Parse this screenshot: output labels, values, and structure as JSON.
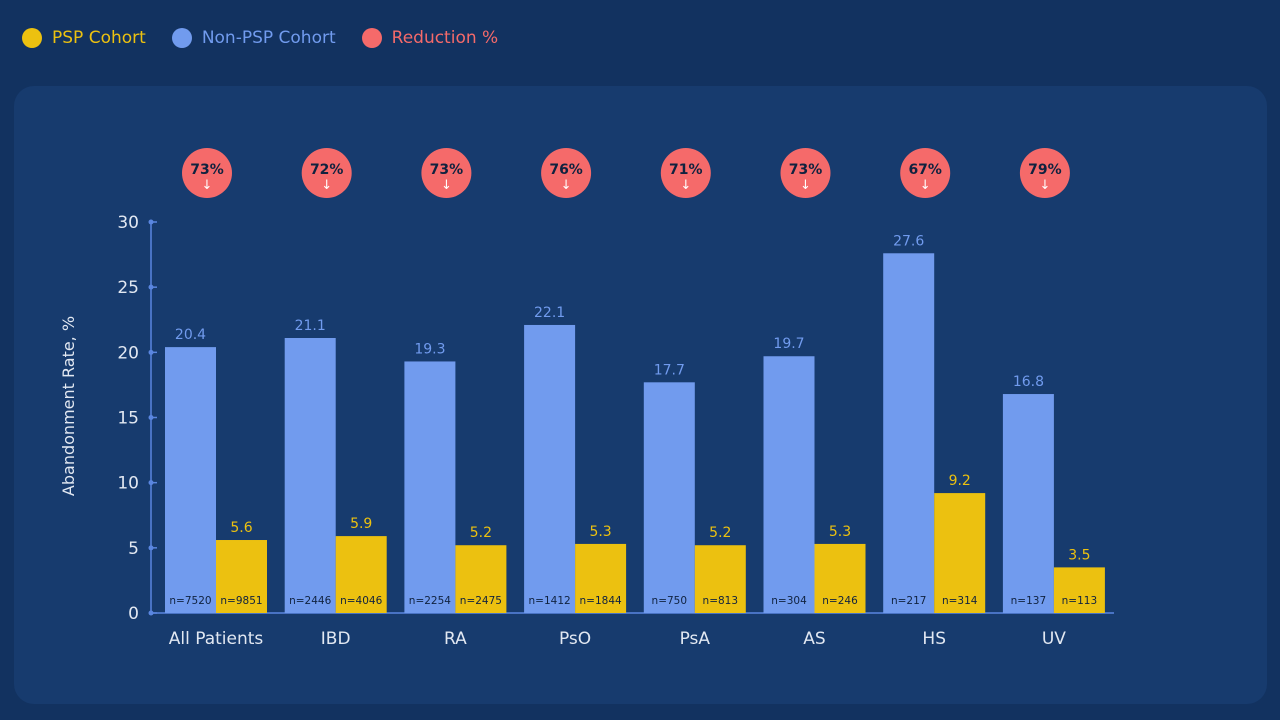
{
  "legend": {
    "psp": "PSP Cohort",
    "non_psp": "Non-PSP Cohort",
    "reduction": "Reduction %"
  },
  "colors": {
    "psp": "#ecc110",
    "non_psp": "#719bee",
    "reduction": "#f56a6a",
    "axis": "#5a86e0",
    "text": "#e2e8f2",
    "n_label": "#10223f"
  },
  "chart_data": {
    "type": "bar",
    "ylabel": "Abandonment Rate, %",
    "ylim": [
      0,
      30
    ],
    "yticks": [
      0,
      5,
      10,
      15,
      20,
      25,
      30
    ],
    "categories": [
      "All Patients",
      "IBD",
      "RA",
      "PsO",
      "PsA",
      "AS",
      "HS",
      "UV"
    ],
    "series": [
      {
        "name": "Non-PSP Cohort",
        "values": [
          20.4,
          21.1,
          19.3,
          22.1,
          17.7,
          19.7,
          27.6,
          16.8
        ],
        "n": [
          "n=7520",
          "n=2446",
          "n=2254",
          "n=1412",
          "n=750",
          "n=304",
          "n=217",
          "n=137"
        ]
      },
      {
        "name": "PSP Cohort",
        "values": [
          5.6,
          5.9,
          5.2,
          5.3,
          5.2,
          5.3,
          9.2,
          3.5
        ],
        "n": [
          "n=9851",
          "n=4046",
          "n=2475",
          "n=1844",
          "n=813",
          "n=246",
          "n=314",
          "n=113"
        ]
      }
    ],
    "reduction": [
      "73%",
      "72%",
      "73%",
      "76%",
      "71%",
      "73%",
      "67%",
      "79%"
    ],
    "reduction_arrow": "↓",
    "legend": "top-left"
  }
}
